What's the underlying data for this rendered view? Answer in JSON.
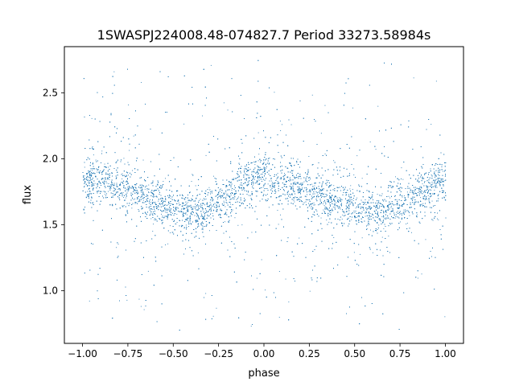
{
  "chart_data": {
    "type": "scatter",
    "title": "1SWASPJ224008.48-074827.7 Period 33273.58984s",
    "xlabel": "phase",
    "ylabel": "flux",
    "xlim": [
      -1.1,
      1.1
    ],
    "ylim": [
      0.6,
      2.85
    ],
    "xticks": [
      -1.0,
      -0.75,
      -0.5,
      -0.25,
      0.0,
      0.25,
      0.5,
      0.75,
      1.0
    ],
    "xtick_labels": [
      "−1.00",
      "−0.75",
      "−0.50",
      "−0.25",
      "0.00",
      "0.25",
      "0.50",
      "0.75",
      "1.00"
    ],
    "yticks": [
      1.0,
      1.5,
      2.0,
      2.5
    ],
    "ytick_labels": [
      "1.0",
      "1.5",
      "2.0",
      "2.5"
    ],
    "grid": false,
    "marker_color": "#1f77b4",
    "phase_range": [
      -1.0,
      1.0
    ],
    "trend": {
      "description": "sinusoidal light curve, two cycles over phase -1 to 1",
      "x": [
        -1.0,
        -0.9,
        -0.75,
        -0.6,
        -0.45,
        -0.35,
        -0.25,
        -0.1,
        0.0,
        0.1,
        0.25,
        0.4,
        0.55,
        0.65,
        0.75,
        0.9,
        1.0
      ],
      "y": [
        1.83,
        1.84,
        1.78,
        1.68,
        1.6,
        1.6,
        1.68,
        1.82,
        1.85,
        1.82,
        1.76,
        1.68,
        1.6,
        1.6,
        1.67,
        1.78,
        1.83
      ]
    },
    "scatter_range": [
      0.7,
      2.75
    ]
  }
}
